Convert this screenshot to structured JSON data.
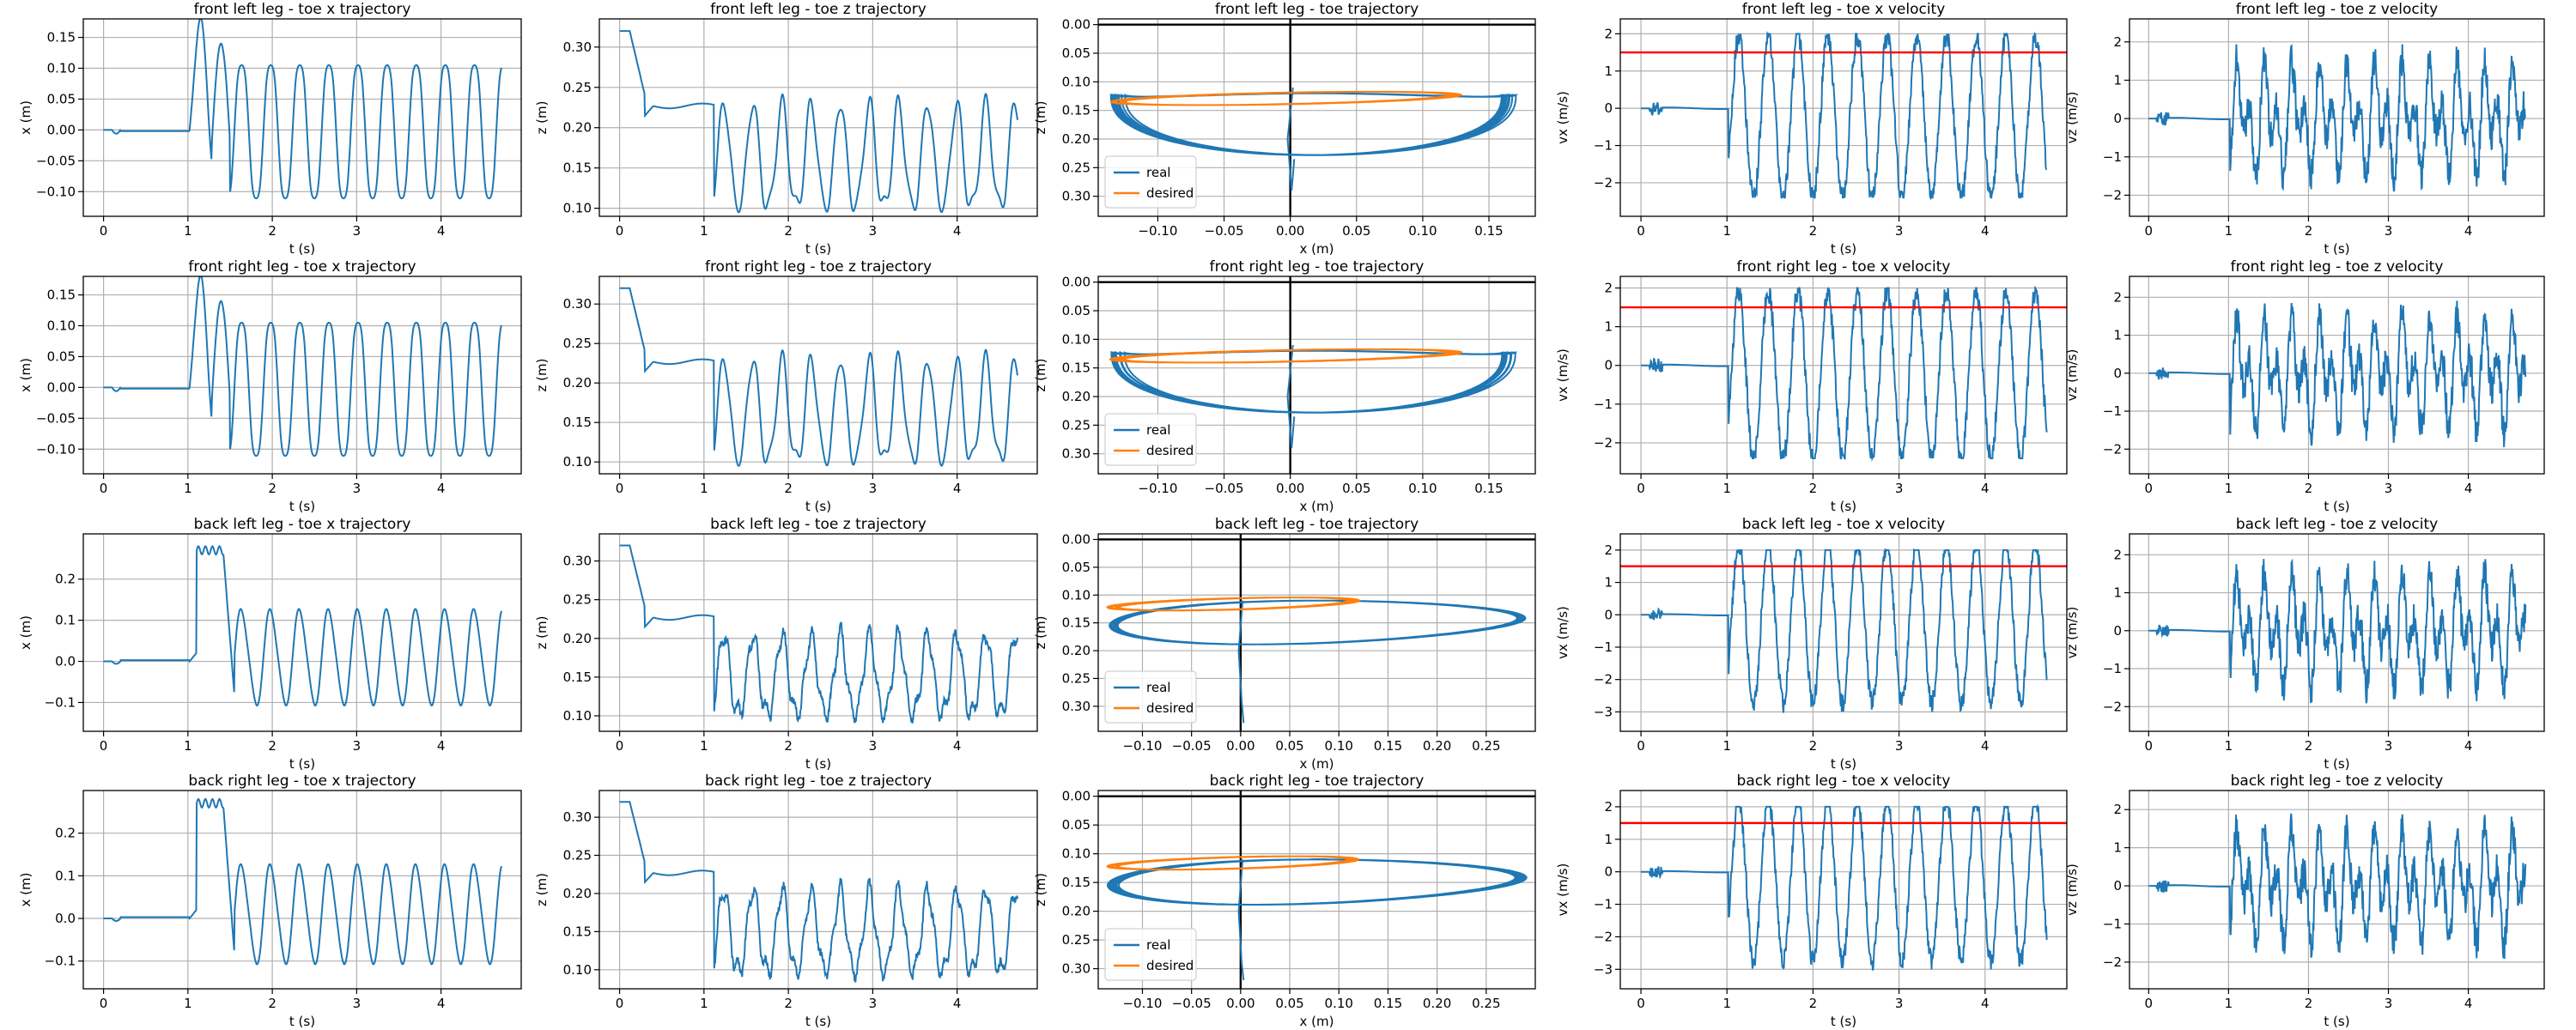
{
  "colors": {
    "real": "#1f77b4",
    "desired": "#ff7f0e",
    "limit": "#ff0000",
    "axis_line": "#000000",
    "grid": "#b0b0b0"
  },
  "chart_data": [
    {
      "id": "fl-x",
      "type": "line",
      "title": "front left leg - toe x trajectory",
      "xlabel": "t (s)",
      "ylabel": "x (m)",
      "xlim": [
        -0.24,
        4.95
      ],
      "ylim": [
        -0.14,
        0.18
      ],
      "xticks": [
        0,
        1,
        2,
        3,
        4
      ],
      "yticks": [
        -0.1,
        -0.05,
        0.0,
        0.05,
        0.1,
        0.15
      ],
      "ytick_labels": [
        "−0.10",
        "−0.05",
        "0.00",
        "0.05",
        "0.10",
        "0.15"
      ],
      "grid": true,
      "signal": {
        "kind": "x",
        "amp": 0.118,
        "offset": -0.003,
        "peak1": 0.155,
        "peak2": 0.16,
        "trough1": -0.125
      },
      "series": [
        {
          "values_note": "oscillating toe x position"
        }
      ]
    },
    {
      "id": "fl-z",
      "type": "line",
      "title": "front left leg - toe z trajectory",
      "xlabel": "t (s)",
      "ylabel": "z (m)",
      "xlim": [
        -0.24,
        4.95
      ],
      "ylim": [
        0.09,
        0.335
      ],
      "xticks": [
        0,
        1,
        2,
        3,
        4
      ],
      "yticks": [
        0.1,
        0.15,
        0.2,
        0.25,
        0.3
      ],
      "ytick_labels": [
        "0.10",
        "0.15",
        "0.20",
        "0.25",
        "0.30"
      ],
      "grid": true,
      "signal": {
        "kind": "z",
        "top": 0.232,
        "bottom": 0.105,
        "start": 0.32,
        "hold": 0.227
      },
      "series": [
        {
          "values_note": "toe z position"
        }
      ]
    },
    {
      "id": "fl-traj",
      "type": "line",
      "title": "front left leg - toe trajectory",
      "xlabel": "x (m)",
      "ylabel": "z (m)",
      "xlim": [
        -0.145,
        0.185
      ],
      "ylim": [
        0.335,
        -0.01
      ],
      "xticks": [
        -0.1,
        -0.05,
        0.0,
        0.05,
        0.1,
        0.15
      ],
      "xtick_labels": [
        "−0.10",
        "−0.05",
        "0.00",
        "0.05",
        "0.10",
        "0.15"
      ],
      "yticks": [
        0.0,
        0.05,
        0.1,
        0.15,
        0.2,
        0.25,
        0.3
      ],
      "ytick_labels": [
        "0.00",
        "0.05",
        "0.10",
        "0.15",
        "0.20",
        "0.25",
        "0.30"
      ],
      "grid": true,
      "legend": {
        "placement": "lower-left",
        "entries": [
          "real",
          "desired"
        ]
      },
      "loop": {
        "xmin": -0.13,
        "xmax": 0.165,
        "top": 0.123,
        "bottom": 0.228,
        "dxmax": 0.125,
        "spike_top": 0.235
      },
      "series": [
        {
          "name": "real"
        },
        {
          "name": "desired"
        }
      ]
    },
    {
      "id": "fl-vx",
      "type": "line",
      "title": "front left leg - toe x velocity",
      "xlabel": "t (s)",
      "ylabel": "vx (m/s)",
      "xlim": [
        -0.24,
        4.95
      ],
      "ylim": [
        -2.9,
        2.4
      ],
      "xticks": [
        0,
        1,
        2,
        3,
        4
      ],
      "yticks": [
        -2,
        -1,
        0,
        1,
        2
      ],
      "ytick_labels": [
        "−2",
        "−1",
        "0",
        "1",
        "2"
      ],
      "grid": true,
      "hline": 1.5,
      "signal": {
        "kind": "v",
        "amp": 2.2,
        "minv": -2.4,
        "maxv": 2.0
      },
      "series": [
        {
          "values_note": "toe x velocity"
        }
      ]
    },
    {
      "id": "fl-vz",
      "type": "line",
      "title": "front left leg - toe z velocity",
      "xlabel": "t (s)",
      "ylabel": "vz (m/s)",
      "xlim": [
        -0.24,
        4.95
      ],
      "ylim": [
        -2.55,
        2.6
      ],
      "xticks": [
        0,
        1,
        2,
        3,
        4
      ],
      "yticks": [
        -2,
        -1,
        0,
        1,
        2
      ],
      "ytick_labels": [
        "−2",
        "−1",
        "0",
        "1",
        "2"
      ],
      "grid": true,
      "signal": {
        "kind": "vz",
        "minv": -2.2,
        "maxv": 2.1
      },
      "series": [
        {
          "values_note": "toe z velocity"
        }
      ]
    },
    {
      "id": "fr-x",
      "type": "line",
      "title": "front right leg - toe x trajectory",
      "xlabel": "t (s)",
      "ylabel": "x (m)",
      "xlim": [
        -0.24,
        4.95
      ],
      "ylim": [
        -0.14,
        0.18
      ],
      "xticks": [
        0,
        1,
        2,
        3,
        4
      ],
      "yticks": [
        -0.1,
        -0.05,
        0.0,
        0.05,
        0.1,
        0.15
      ],
      "ytick_labels": [
        "−0.10",
        "−0.05",
        "0.00",
        "0.05",
        "0.10",
        "0.15"
      ],
      "grid": true,
      "signal": {
        "kind": "x",
        "amp": 0.118,
        "offset": -0.003,
        "peak1": 0.155,
        "peak2": 0.16,
        "trough1": -0.125
      },
      "series": [
        {
          "values_note": "oscillating toe x position"
        }
      ]
    },
    {
      "id": "fr-z",
      "type": "line",
      "title": "front right leg - toe z trajectory",
      "xlabel": "t (s)",
      "ylabel": "z (m)",
      "xlim": [
        -0.24,
        4.95
      ],
      "ylim": [
        0.085,
        0.335
      ],
      "xticks": [
        0,
        1,
        2,
        3,
        4
      ],
      "yticks": [
        0.1,
        0.15,
        0.2,
        0.25,
        0.3
      ],
      "ytick_labels": [
        "0.10",
        "0.15",
        "0.20",
        "0.25",
        "0.30"
      ],
      "grid": true,
      "signal": {
        "kind": "z",
        "top": 0.232,
        "bottom": 0.105,
        "start": 0.32,
        "hold": 0.227
      },
      "series": [
        {
          "values_note": "toe z position"
        }
      ]
    },
    {
      "id": "fr-traj",
      "type": "line",
      "title": "front right leg - toe trajectory",
      "xlabel": "x (m)",
      "ylabel": "z (m)",
      "xlim": [
        -0.145,
        0.185
      ],
      "ylim": [
        0.335,
        -0.01
      ],
      "xticks": [
        -0.1,
        -0.05,
        0.0,
        0.05,
        0.1,
        0.15
      ],
      "xtick_labels": [
        "−0.10",
        "−0.05",
        "0.00",
        "0.05",
        "0.10",
        "0.15"
      ],
      "yticks": [
        0.0,
        0.05,
        0.1,
        0.15,
        0.2,
        0.25,
        0.3
      ],
      "ytick_labels": [
        "0.00",
        "0.05",
        "0.10",
        "0.15",
        "0.20",
        "0.25",
        "0.30"
      ],
      "grid": true,
      "legend": {
        "placement": "lower-left",
        "entries": [
          "real",
          "desired"
        ]
      },
      "loop": {
        "xmin": -0.13,
        "xmax": 0.165,
        "top": 0.123,
        "bottom": 0.228,
        "dxmax": 0.125,
        "spike_top": 0.235
      },
      "series": [
        {
          "name": "real"
        },
        {
          "name": "desired"
        }
      ]
    },
    {
      "id": "fr-vx",
      "type": "line",
      "title": "front right leg - toe x velocity",
      "xlabel": "t (s)",
      "ylabel": "vx (m/s)",
      "xlim": [
        -0.24,
        4.95
      ],
      "ylim": [
        -2.8,
        2.3
      ],
      "xticks": [
        0,
        1,
        2,
        3,
        4
      ],
      "yticks": [
        -2,
        -1,
        0,
        1,
        2
      ],
      "ytick_labels": [
        "−2",
        "−1",
        "0",
        "1",
        "2"
      ],
      "grid": true,
      "hline": 1.5,
      "signal": {
        "kind": "v",
        "amp": 2.2,
        "minv": -2.4,
        "maxv": 2.0
      },
      "series": [
        {
          "values_note": "toe x velocity"
        }
      ]
    },
    {
      "id": "fr-vz",
      "type": "line",
      "title": "front right leg - toe z velocity",
      "xlabel": "t (s)",
      "ylabel": "vz (m/s)",
      "xlim": [
        -0.24,
        4.95
      ],
      "ylim": [
        -2.65,
        2.55
      ],
      "xticks": [
        0,
        1,
        2,
        3,
        4
      ],
      "yticks": [
        -2,
        -1,
        0,
        1,
        2
      ],
      "ytick_labels": [
        "−2",
        "−1",
        "0",
        "1",
        "2"
      ],
      "grid": true,
      "signal": {
        "kind": "vz",
        "minv": -2.2,
        "maxv": 2.1
      },
      "series": [
        {
          "values_note": "toe z velocity"
        }
      ]
    },
    {
      "id": "bl-x",
      "type": "line",
      "title": "back left leg - toe x trajectory",
      "xlabel": "t (s)",
      "ylabel": "x (m)",
      "xlim": [
        -0.24,
        4.95
      ],
      "ylim": [
        -0.17,
        0.31
      ],
      "xticks": [
        0,
        1,
        2,
        3,
        4
      ],
      "yticks": [
        -0.1,
        0.0,
        0.1,
        0.2
      ],
      "ytick_labels": [
        "−0.1",
        "0.0",
        "0.1",
        "0.2"
      ],
      "grid": true,
      "signal": {
        "kind": "xb",
        "amp": 0.12,
        "offset": 0.0,
        "peak1": 0.275,
        "trough1": -0.12
      },
      "series": [
        {
          "values_note": "oscillating toe x position"
        }
      ]
    },
    {
      "id": "bl-z",
      "type": "line",
      "title": "back left leg - toe z trajectory",
      "xlabel": "t (s)",
      "ylabel": "z (m)",
      "xlim": [
        -0.24,
        4.95
      ],
      "ylim": [
        0.08,
        0.335
      ],
      "xticks": [
        0,
        1,
        2,
        3,
        4
      ],
      "yticks": [
        0.1,
        0.15,
        0.2,
        0.25,
        0.3
      ],
      "ytick_labels": [
        "0.10",
        "0.15",
        "0.20",
        "0.25",
        "0.30"
      ],
      "grid": true,
      "signal": {
        "kind": "zb",
        "top": 0.205,
        "bottom": 0.105,
        "start": 0.32,
        "hold": 0.227
      },
      "series": [
        {
          "values_note": "toe z position"
        }
      ]
    },
    {
      "id": "bl-traj",
      "type": "line",
      "title": "back left leg - toe trajectory",
      "xlabel": "x (m)",
      "ylabel": "z (m)",
      "xlim": [
        -0.145,
        0.3
      ],
      "ylim": [
        0.345,
        -0.01
      ],
      "xticks": [
        -0.1,
        -0.05,
        0.0,
        0.05,
        0.1,
        0.15,
        0.2,
        0.25
      ],
      "xtick_labels": [
        "−0.10",
        "−0.05",
        "0.00",
        "0.05",
        "0.10",
        "0.15",
        "0.20",
        "0.25"
      ],
      "yticks": [
        0.0,
        0.05,
        0.1,
        0.15,
        0.2,
        0.25,
        0.3
      ],
      "ytick_labels": [
        "0.00",
        "0.05",
        "0.10",
        "0.15",
        "0.20",
        "0.25",
        "0.30"
      ],
      "grid": true,
      "legend": {
        "placement": "lower-left",
        "entries": [
          "real",
          "desired"
        ]
      },
      "loop": {
        "xmin": -0.13,
        "xmax": 0.14,
        "top": 0.11,
        "bottom": 0.2,
        "dxmax": 0.115,
        "spike_top": 0.33,
        "wide": 0.285
      },
      "series": [
        {
          "name": "real"
        },
        {
          "name": "desired"
        }
      ]
    },
    {
      "id": "bl-vx",
      "type": "line",
      "title": "back left leg - toe x velocity",
      "xlabel": "t (s)",
      "ylabel": "vx (m/s)",
      "xlim": [
        -0.24,
        4.95
      ],
      "ylim": [
        -3.6,
        2.5
      ],
      "xticks": [
        0,
        1,
        2,
        3,
        4
      ],
      "yticks": [
        -3,
        -2,
        -1,
        0,
        1,
        2
      ],
      "ytick_labels": [
        "−3",
        "−2",
        "−1",
        "0",
        "1",
        "2"
      ],
      "grid": true,
      "hline": 1.5,
      "signal": {
        "kind": "vb",
        "amp": 2.5,
        "minv": -3.2,
        "maxv": 2.0
      },
      "series": [
        {
          "values_note": "toe x velocity"
        }
      ]
    },
    {
      "id": "bl-vz",
      "type": "line",
      "title": "back left leg - toe z velocity",
      "xlabel": "t (s)",
      "ylabel": "vz (m/s)",
      "xlim": [
        -0.24,
        4.95
      ],
      "ylim": [
        -2.65,
        2.55
      ],
      "xticks": [
        0,
        1,
        2,
        3,
        4
      ],
      "yticks": [
        -2,
        -1,
        0,
        1,
        2
      ],
      "ytick_labels": [
        "−2",
        "−1",
        "0",
        "1",
        "2"
      ],
      "grid": true,
      "signal": {
        "kind": "vzb",
        "minv": -2.3,
        "maxv": 2.2
      },
      "series": [
        {
          "values_note": "toe z velocity"
        }
      ]
    },
    {
      "id": "br-x",
      "type": "line",
      "title": "back right leg - toe x trajectory",
      "xlabel": "t (s)",
      "ylabel": "x (m)",
      "xlim": [
        -0.24,
        4.95
      ],
      "ylim": [
        -0.165,
        0.3
      ],
      "xticks": [
        0,
        1,
        2,
        3,
        4
      ],
      "yticks": [
        -0.1,
        0.0,
        0.1,
        0.2
      ],
      "ytick_labels": [
        "−0.1",
        "0.0",
        "0.1",
        "0.2"
      ],
      "grid": true,
      "signal": {
        "kind": "xb",
        "amp": 0.12,
        "offset": 0.0,
        "peak1": 0.275,
        "trough1": -0.12
      },
      "series": [
        {
          "values_note": "oscillating toe x position"
        }
      ]
    },
    {
      "id": "br-z",
      "type": "line",
      "title": "back right leg - toe z trajectory",
      "xlabel": "t (s)",
      "ylabel": "z (m)",
      "xlim": [
        -0.24,
        4.95
      ],
      "ylim": [
        0.075,
        0.335
      ],
      "xticks": [
        0,
        1,
        2,
        3,
        4
      ],
      "yticks": [
        0.1,
        0.15,
        0.2,
        0.25,
        0.3
      ],
      "ytick_labels": [
        "0.10",
        "0.15",
        "0.20",
        "0.25",
        "0.30"
      ],
      "grid": true,
      "signal": {
        "kind": "zb",
        "top": 0.205,
        "bottom": 0.1,
        "start": 0.32,
        "hold": 0.227
      },
      "series": [
        {
          "values_note": "toe z position"
        }
      ]
    },
    {
      "id": "br-traj",
      "type": "line",
      "title": "back right leg - toe trajectory",
      "xlabel": "x (m)",
      "ylabel": "z (m)",
      "xlim": [
        -0.145,
        0.3
      ],
      "ylim": [
        0.335,
        -0.01
      ],
      "xticks": [
        -0.1,
        -0.05,
        0.0,
        0.05,
        0.1,
        0.15,
        0.2,
        0.25
      ],
      "xtick_labels": [
        "−0.10",
        "−0.05",
        "0.00",
        "0.05",
        "0.10",
        "0.15",
        "0.20",
        "0.25"
      ],
      "yticks": [
        0.0,
        0.05,
        0.1,
        0.15,
        0.2,
        0.25,
        0.3
      ],
      "ytick_labels": [
        "0.00",
        "0.05",
        "0.10",
        "0.15",
        "0.20",
        "0.25",
        "0.30"
      ],
      "grid": true,
      "legend": {
        "placement": "lower-left",
        "entries": [
          "real",
          "desired"
        ]
      },
      "loop": {
        "xmin": -0.13,
        "xmax": 0.14,
        "top": 0.11,
        "bottom": 0.2,
        "dxmax": 0.115,
        "spike_top": 0.32,
        "wide": 0.285
      },
      "series": [
        {
          "name": "real"
        },
        {
          "name": "desired"
        }
      ]
    },
    {
      "id": "br-vx",
      "type": "line",
      "title": "back right leg - toe x velocity",
      "xlabel": "t (s)",
      "ylabel": "vx (m/s)",
      "xlim": [
        -0.24,
        4.95
      ],
      "ylim": [
        -3.6,
        2.5
      ],
      "xticks": [
        0,
        1,
        2,
        3,
        4
      ],
      "yticks": [
        -3,
        -2,
        -1,
        0,
        1,
        2
      ],
      "ytick_labels": [
        "−3",
        "−2",
        "−1",
        "0",
        "1",
        "2"
      ],
      "grid": true,
      "hline": 1.5,
      "signal": {
        "kind": "vb",
        "amp": 2.5,
        "minv": -3.2,
        "maxv": 2.0
      },
      "series": [
        {
          "values_note": "toe x velocity"
        }
      ]
    },
    {
      "id": "br-vz",
      "type": "line",
      "title": "back right leg - toe z velocity",
      "xlabel": "t (s)",
      "ylabel": "vz (m/s)",
      "xlim": [
        -0.24,
        4.95
      ],
      "ylim": [
        -2.7,
        2.5
      ],
      "xticks": [
        0,
        1,
        2,
        3,
        4
      ],
      "yticks": [
        -2,
        -1,
        0,
        1,
        2
      ],
      "ytick_labels": [
        "−2",
        "−1",
        "0",
        "1",
        "2"
      ],
      "grid": true,
      "signal": {
        "kind": "vzb",
        "minv": -2.3,
        "maxv": 2.2
      },
      "series": [
        {
          "values_note": "toe z velocity"
        }
      ]
    }
  ]
}
